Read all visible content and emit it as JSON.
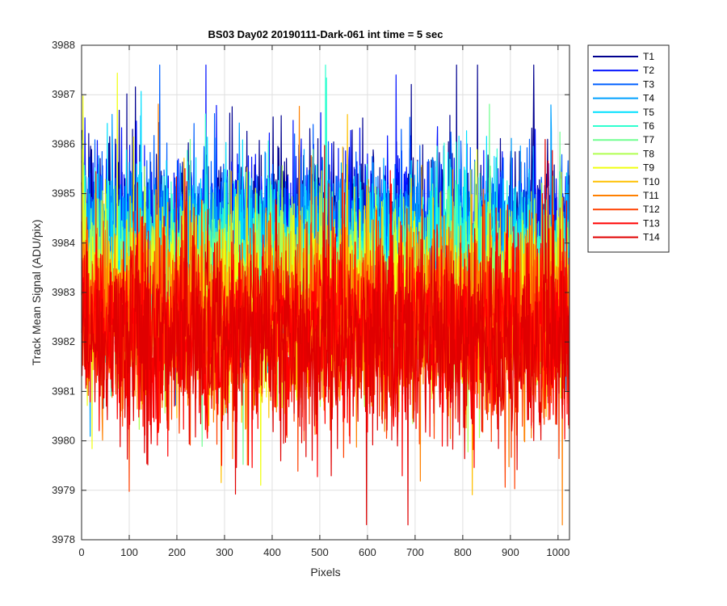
{
  "chart_data": {
    "type": "line",
    "title": "BS03 Day02 20190111-Dark-061 int time = 5 sec",
    "xlabel": "Pixels",
    "ylabel": "Track Mean Signal (ADU/pix)",
    "xlim": [
      0,
      1024
    ],
    "ylim": [
      3978,
      3988
    ],
    "x_ticks": [
      0,
      100,
      200,
      300,
      400,
      500,
      600,
      700,
      800,
      900,
      1000
    ],
    "y_ticks": [
      3978,
      3979,
      3980,
      3981,
      3982,
      3983,
      3984,
      3985,
      3986,
      3987,
      3988
    ],
    "grid": true,
    "legend_position": "outside-right-top",
    "n_points": 1024,
    "series": [
      {
        "name": "T1",
        "color": "#00008f",
        "mean": 3984.3,
        "noise_amplitude": 1.1
      },
      {
        "name": "T2",
        "color": "#0010ff",
        "mean": 3984.2,
        "noise_amplitude": 1.1
      },
      {
        "name": "T3",
        "color": "#0060ff",
        "mean": 3984.0,
        "noise_amplitude": 1.1
      },
      {
        "name": "T4",
        "color": "#00a0ff",
        "mean": 3983.8,
        "noise_amplitude": 1.1
      },
      {
        "name": "T5",
        "color": "#00e0ff",
        "mean": 3983.6,
        "noise_amplitude": 1.1
      },
      {
        "name": "T6",
        "color": "#30ffd0",
        "mean": 3983.4,
        "noise_amplitude": 1.15
      },
      {
        "name": "T7",
        "color": "#70ff90",
        "mean": 3983.2,
        "noise_amplitude": 1.15
      },
      {
        "name": "T8",
        "color": "#b0ff50",
        "mean": 3983.0,
        "noise_amplitude": 1.2
      },
      {
        "name": "T9",
        "color": "#f0ff10",
        "mean": 3982.8,
        "noise_amplitude": 1.2
      },
      {
        "name": "T10",
        "color": "#ffc000",
        "mean": 3982.6,
        "noise_amplitude": 1.2
      },
      {
        "name": "T11",
        "color": "#ff8000",
        "mean": 3982.4,
        "noise_amplitude": 1.25
      },
      {
        "name": "T12",
        "color": "#ff4000",
        "mean": 3982.3,
        "noise_amplitude": 1.25
      },
      {
        "name": "T13",
        "color": "#ff0000",
        "mean": 3982.2,
        "noise_amplitude": 1.3
      },
      {
        "name": "T14",
        "color": "#e00000",
        "mean": 3982.1,
        "noise_amplitude": 1.3
      }
    ],
    "colors": {
      "axes": "#262626",
      "grid": "#dfdfdf",
      "background": "#ffffff"
    }
  }
}
